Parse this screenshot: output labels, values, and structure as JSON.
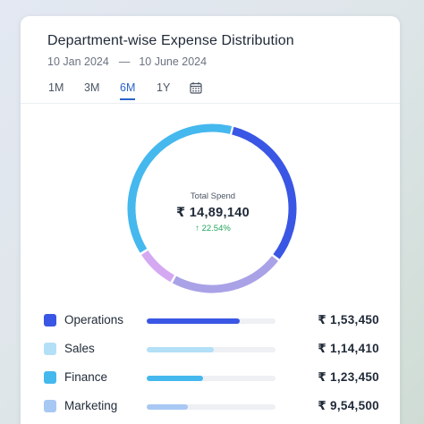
{
  "widget": {
    "title": "Department-wise Expense Distribution",
    "date_start": "10 Jan 2024",
    "date_separator": "—",
    "date_end": "10 June 2024"
  },
  "tabs": [
    {
      "label": "1M",
      "active": false
    },
    {
      "label": "3M",
      "active": false
    },
    {
      "label": "6M",
      "active": true
    },
    {
      "label": "1Y",
      "active": false
    }
  ],
  "calendar_icon": "calendar-icon",
  "summary": {
    "label": "Total Spend",
    "value": "₹ 14,89,140",
    "change": "22.54%",
    "change_arrow": "↑",
    "change_color": "#22a55a"
  },
  "donut_segments": [
    {
      "name": "Operations",
      "fraction": 0.315,
      "color": "#3a56e4"
    },
    {
      "name": "Sales",
      "fraction": 0.225,
      "color": "#a9a2e6"
    },
    {
      "name": "Marketing",
      "fraction": 0.08,
      "color": "#d5a9f2"
    },
    {
      "name": "Finance",
      "fraction": 0.38,
      "color": "#45b8ee"
    }
  ],
  "departments": [
    {
      "name": "Operations",
      "amount": "₹ 1,53,450",
      "color": "#3a56e4",
      "bar_fraction": 0.72
    },
    {
      "name": "Sales",
      "amount": "₹ 1,14,410",
      "color": "#b3e0f7",
      "bar_fraction": 0.52
    },
    {
      "name": "Finance",
      "amount": "₹ 1,23,450",
      "color": "#45b8ee",
      "bar_fraction": 0.44
    },
    {
      "name": "Marketing",
      "amount": "₹ 9,54,500",
      "color": "#a8c8f4",
      "bar_fraction": 0.32
    }
  ]
}
